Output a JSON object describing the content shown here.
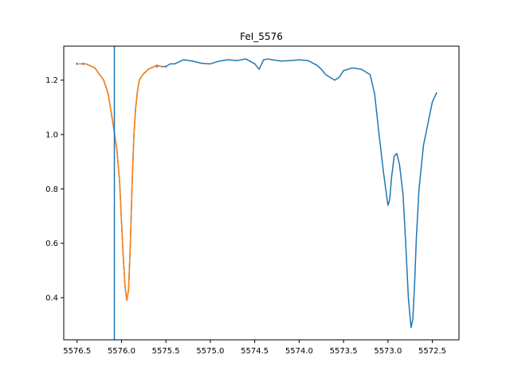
{
  "chart_data": {
    "type": "line",
    "title": "FeI_5576",
    "xlabel": "",
    "ylabel": "",
    "x_inverted": true,
    "xlim": [
      5576.65,
      5572.2
    ],
    "ylim": [
      0.245,
      1.325
    ],
    "xticks": [
      5576.5,
      5576.0,
      5575.5,
      5575.0,
      5574.5,
      5574.0,
      5573.5,
      5573.0,
      5572.5
    ],
    "xtick_labels": [
      "5576.5",
      "5576.0",
      "5575.5",
      "5575.0",
      "5574.5",
      "5574.0",
      "5573.5",
      "5573.0",
      "5572.5"
    ],
    "yticks": [
      0.4,
      0.6,
      0.8,
      1.0,
      1.2
    ],
    "ytick_labels": [
      "0.4",
      "0.6",
      "0.8",
      "1.0",
      "1.2"
    ],
    "grid": false,
    "vline": {
      "x": 5576.08,
      "color": "#1f77b4"
    },
    "colors": {
      "spectrum": "#1f77b4",
      "fit": "#ff7f0e",
      "markers": "#9467bd"
    },
    "series": [
      {
        "role": "spectrum",
        "x": [
          5576.48,
          5576.4,
          5576.3,
          5576.2,
          5576.15,
          5576.1,
          5576.05,
          5576.02,
          5576.0,
          5575.98,
          5575.96,
          5575.94,
          5575.92,
          5575.9,
          5575.88,
          5575.86,
          5575.84,
          5575.82,
          5575.8,
          5575.76,
          5575.7,
          5575.6,
          5575.55,
          5575.5,
          5575.45,
          5575.4,
          5575.3,
          5575.2,
          5575.1,
          5575.0,
          5574.9,
          5574.8,
          5574.7,
          5574.6,
          5574.5,
          5574.45,
          5574.4,
          5574.35,
          5574.3,
          5574.2,
          5574.1,
          5574.0,
          5573.9,
          5573.8,
          5573.75,
          5573.7,
          5573.6,
          5573.55,
          5573.5,
          5573.4,
          5573.3,
          5573.2,
          5573.15,
          5573.1,
          5573.05,
          5573.0,
          5572.98,
          5572.96,
          5572.93,
          5572.9,
          5572.87,
          5572.83,
          5572.8,
          5572.77,
          5572.74,
          5572.72,
          5572.7,
          5572.68,
          5572.65,
          5572.6,
          5572.55,
          5572.5,
          5572.45
        ],
        "y": [
          1.26,
          1.26,
          1.245,
          1.2,
          1.15,
          1.05,
          0.94,
          0.82,
          0.68,
          0.55,
          0.44,
          0.39,
          0.43,
          0.6,
          0.82,
          1.0,
          1.1,
          1.16,
          1.2,
          1.22,
          1.24,
          1.255,
          1.25,
          1.25,
          1.26,
          1.26,
          1.275,
          1.27,
          1.262,
          1.26,
          1.27,
          1.275,
          1.272,
          1.278,
          1.26,
          1.24,
          1.275,
          1.278,
          1.275,
          1.27,
          1.272,
          1.275,
          1.272,
          1.255,
          1.24,
          1.22,
          1.2,
          1.21,
          1.235,
          1.245,
          1.24,
          1.22,
          1.15,
          1.0,
          0.86,
          0.74,
          0.76,
          0.84,
          0.92,
          0.93,
          0.89,
          0.78,
          0.6,
          0.4,
          0.29,
          0.32,
          0.45,
          0.62,
          0.8,
          0.96,
          1.04,
          1.12,
          1.155
        ]
      },
      {
        "role": "fit",
        "x": [
          5576.48,
          5576.4,
          5576.3,
          5576.2,
          5576.15,
          5576.1,
          5576.05,
          5576.02,
          5576.0,
          5575.98,
          5575.96,
          5575.94,
          5575.92,
          5575.9,
          5575.88,
          5575.86,
          5575.84,
          5575.82,
          5575.8,
          5575.76,
          5575.7,
          5575.6,
          5575.55
        ],
        "y": [
          1.26,
          1.26,
          1.245,
          1.2,
          1.15,
          1.05,
          0.94,
          0.82,
          0.68,
          0.55,
          0.44,
          0.39,
          0.43,
          0.6,
          0.82,
          1.0,
          1.1,
          1.16,
          1.2,
          1.22,
          1.24,
          1.255,
          1.25
        ]
      },
      {
        "role": "markers",
        "x": [
          5576.5,
          5576.43,
          5575.6,
          5575.5
        ],
        "y": [
          1.26,
          1.26,
          1.25,
          1.25
        ]
      }
    ]
  }
}
